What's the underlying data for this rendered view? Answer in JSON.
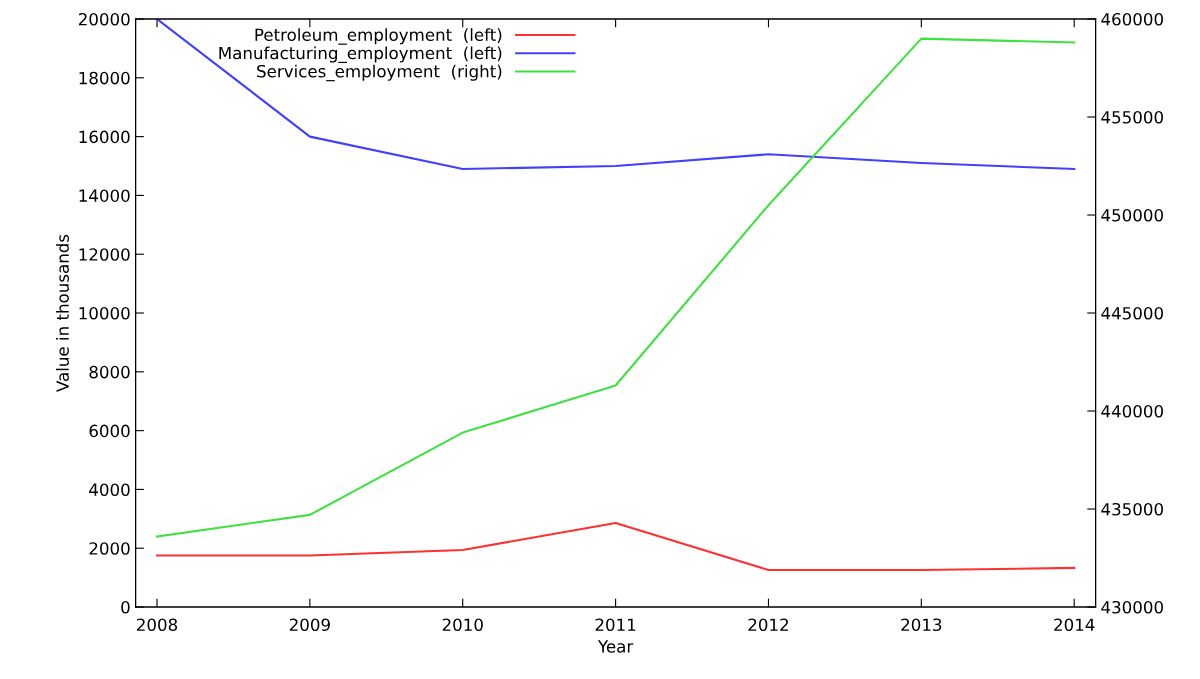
{
  "chart_data": {
    "type": "line",
    "xlabel": "Year",
    "ylabel": "Value in thousands",
    "x": [
      2008,
      2009,
      2010,
      2011,
      2012,
      2013,
      2014
    ],
    "xlim": [
      2007.86,
      2014.14
    ],
    "xticks": [
      2008,
      2009,
      2010,
      2011,
      2012,
      2013,
      2014
    ],
    "ylim": [
      0,
      20000
    ],
    "yticks": [
      0,
      2000,
      4000,
      6000,
      8000,
      10000,
      12000,
      14000,
      16000,
      18000,
      20000
    ],
    "y2lim": [
      430000,
      460000
    ],
    "y2ticks": [
      430000,
      435000,
      440000,
      445000,
      450000,
      455000,
      460000
    ],
    "legend": "top left",
    "grid": false,
    "marker": "none",
    "line_style": "solid",
    "series": [
      {
        "name": "Petroleum_employment  (left)",
        "color": "#ff3030",
        "values": [
          1750,
          1750,
          1940,
          2860,
          1260,
          1260,
          1330
        ]
      },
      {
        "name": "Manufacturing_employment  (left)",
        "color": "#4040ff",
        "values": [
          20000,
          16000,
          14900,
          15000,
          15400,
          15100,
          14900
        ]
      },
      {
        "name": "Services_employment  (right)",
        "color": "#40e040",
        "axis": "y2",
        "values": [
          433600,
          434700,
          438900,
          441300,
          450500,
          459000,
          458800
        ]
      }
    ]
  }
}
